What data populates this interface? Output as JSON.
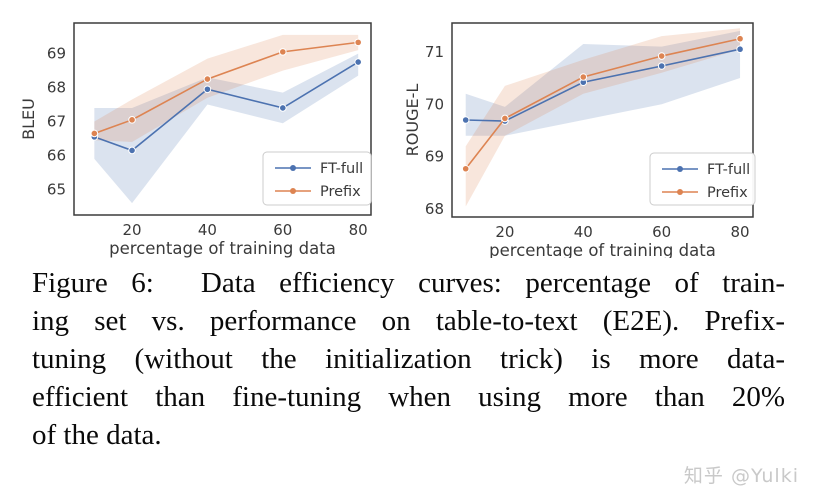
{
  "figure": {
    "caption": {
      "lines": [
        "Figure 6:  Data efficiency curves: percentage of train-",
        "ing set vs. performance on table-to-text (E2E). Prefix-",
        "tuning (without the initialization trick) is more data-",
        "efficient than fine-tuning when using more than 20%",
        "of the data."
      ]
    },
    "watermark": "知乎 @Yulki"
  },
  "colors": {
    "ft_full": "#4c72b0",
    "prefix": "#dd8452",
    "spine": "#3b3b3b",
    "tick_label": "#3a3a3a",
    "legend_border": "#cccccc",
    "band_opacity": 0.2
  },
  "chart_data": [
    {
      "type": "line",
      "title": "",
      "xlabel": "percentage of training data",
      "ylabel": "BLEU",
      "x": [
        10,
        20,
        40,
        60,
        80
      ],
      "xticks": [
        20,
        40,
        60,
        80
      ],
      "yticks": [
        65,
        66,
        67,
        68,
        69
      ],
      "xlim": [
        4.6,
        83.4
      ],
      "ylim": [
        64.25,
        69.9
      ],
      "grid": false,
      "legend_position": "lower right",
      "series": [
        {
          "name": "FT-full",
          "color": "#4c72b0",
          "values": [
            66.55,
            66.15,
            67.95,
            67.4,
            68.75
          ],
          "band_low": [
            65.9,
            64.6,
            67.5,
            66.95,
            68.35
          ],
          "band_high": [
            67.4,
            67.4,
            68.3,
            67.85,
            69.0
          ]
        },
        {
          "name": "Prefix",
          "color": "#dd8452",
          "values": [
            66.65,
            67.05,
            68.25,
            69.05,
            69.33
          ],
          "band_low": [
            66.45,
            66.4,
            67.7,
            68.5,
            69.1
          ],
          "band_high": [
            67.0,
            67.65,
            68.85,
            69.55,
            69.55
          ]
        }
      ]
    },
    {
      "type": "line",
      "title": "",
      "xlabel": "percentage of training data",
      "ylabel": "ROUGE-L",
      "x": [
        10,
        20,
        40,
        60,
        80
      ],
      "xticks": [
        20,
        40,
        60,
        80
      ],
      "yticks": [
        68,
        69,
        70,
        71
      ],
      "xlim": [
        6.5,
        83.3
      ],
      "ylim": [
        67.85,
        71.55
      ],
      "grid": false,
      "legend_position": "lower right",
      "series": [
        {
          "name": "FT-full",
          "color": "#4c72b0",
          "values": [
            69.7,
            69.68,
            70.42,
            70.73,
            71.05
          ],
          "band_low": [
            69.4,
            69.4,
            69.7,
            70.0,
            70.5
          ],
          "band_high": [
            70.2,
            69.95,
            71.15,
            71.1,
            71.4
          ]
        },
        {
          "name": "Prefix",
          "color": "#dd8452",
          "values": [
            68.77,
            69.73,
            70.52,
            70.92,
            71.25
          ],
          "band_low": [
            68.05,
            69.4,
            70.2,
            70.6,
            71.05
          ],
          "band_high": [
            69.2,
            70.35,
            70.85,
            71.3,
            71.45
          ]
        }
      ]
    }
  ]
}
